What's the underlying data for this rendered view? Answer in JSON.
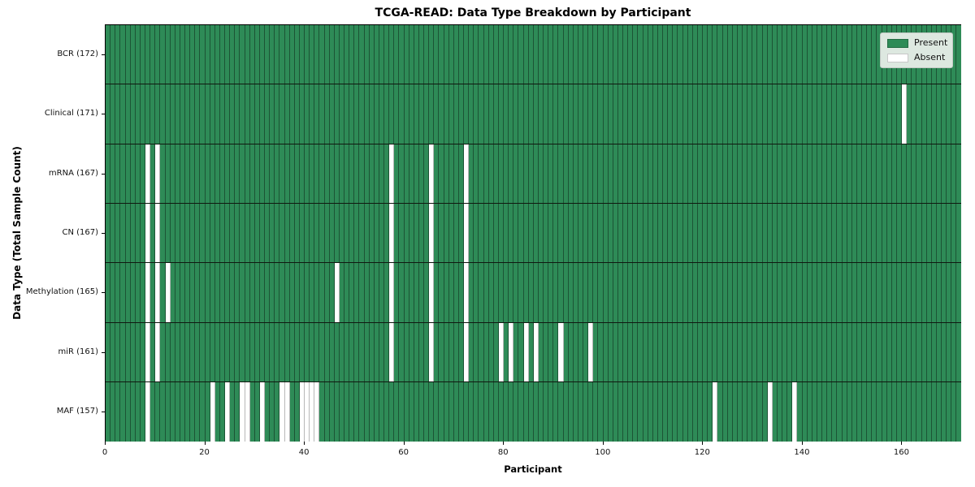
{
  "figure": {
    "title": "TCGA-READ: Data Type Breakdown by Participant",
    "xlabel": "Participant",
    "ylabel": "Data Type (Total Sample Count)"
  },
  "legend": {
    "items": [
      {
        "label": "Present",
        "color": "#2e8b57"
      },
      {
        "label": "Absent",
        "color": "#ffffff"
      }
    ]
  },
  "chart_data": {
    "type": "heatmap",
    "subtype": "presence-absence matrix",
    "title": "TCGA-READ: Data Type Breakdown by Participant",
    "xlabel": "Participant",
    "ylabel": "Data Type (Total Sample Count)",
    "n_participants": 172,
    "x_axis": {
      "min": 0,
      "max": 172,
      "ticks": [
        0,
        20,
        40,
        60,
        80,
        100,
        120,
        140,
        160
      ]
    },
    "colors": {
      "present": "#2e8b57",
      "absent": "#ffffff"
    },
    "legend_position": "upper right",
    "grid": "cell-borders",
    "rows": [
      {
        "data_type": "BCR",
        "label": "BCR (172)",
        "total": 172,
        "absent_participants": []
      },
      {
        "data_type": "Clinical",
        "label": "Clinical (171)",
        "total": 171,
        "absent_participants": [
          160
        ]
      },
      {
        "data_type": "mRNA",
        "label": "mRNA (167)",
        "total": 167,
        "absent_participants": [
          8,
          10,
          57,
          65,
          72
        ]
      },
      {
        "data_type": "CN",
        "label": "CN (167)",
        "total": 167,
        "absent_participants": [
          8,
          10,
          57,
          65,
          72
        ]
      },
      {
        "data_type": "Methylation",
        "label": "Methylation (165)",
        "total": 165,
        "absent_participants": [
          8,
          10,
          12,
          46,
          57,
          65,
          72
        ]
      },
      {
        "data_type": "miR",
        "label": "miR (161)",
        "total": 161,
        "absent_participants": [
          8,
          10,
          57,
          65,
          72,
          79,
          81,
          84,
          86,
          91,
          97
        ]
      },
      {
        "data_type": "MAF",
        "label": "MAF (157)",
        "total": 157,
        "absent_participants": [
          8,
          21,
          24,
          27,
          28,
          31,
          35,
          36,
          39,
          40,
          41,
          42,
          122,
          133,
          138
        ]
      }
    ]
  }
}
